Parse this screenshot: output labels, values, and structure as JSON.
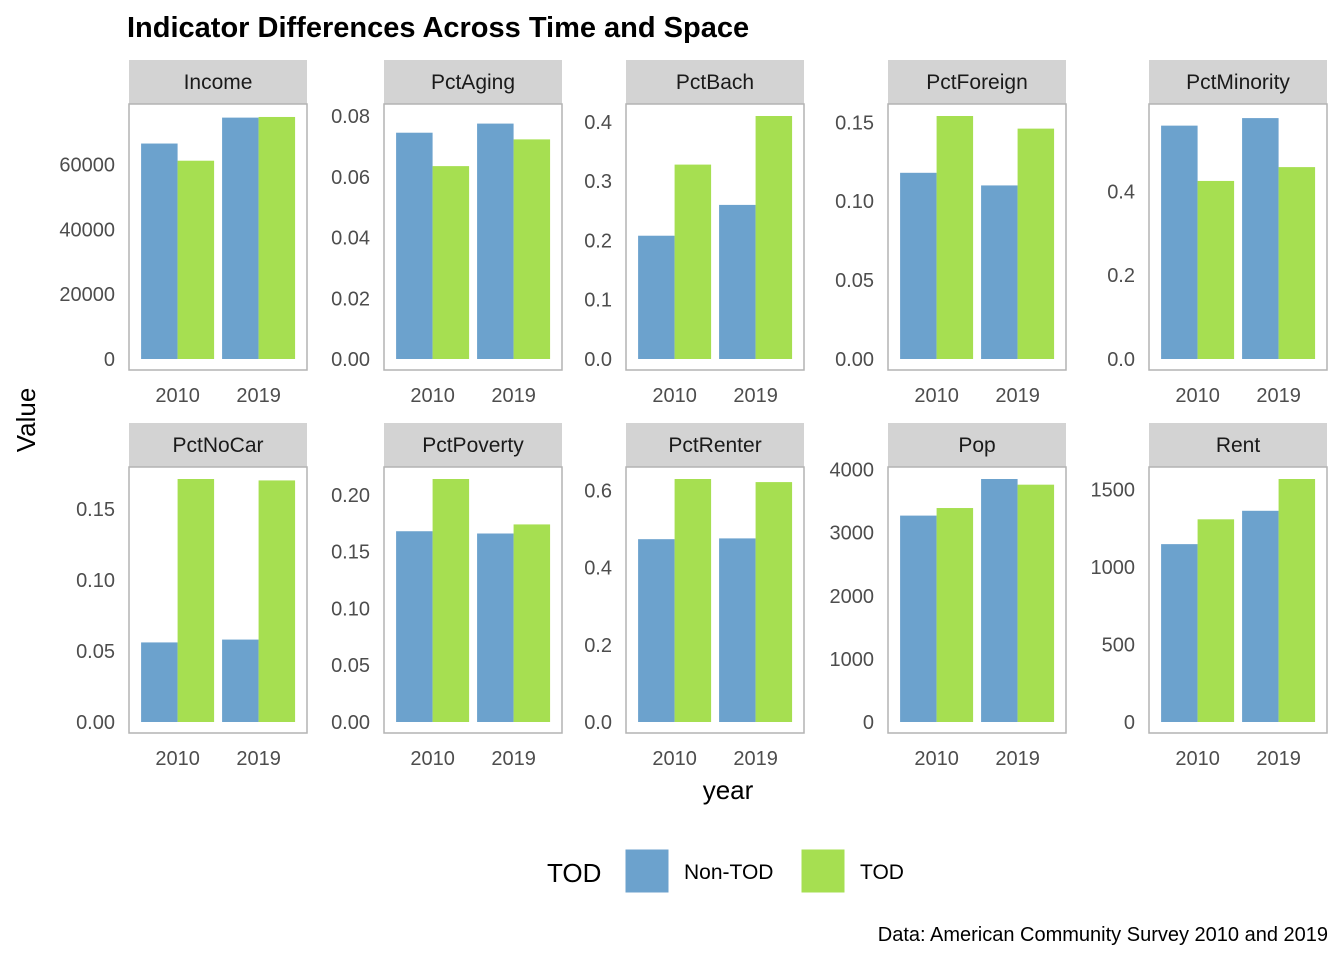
{
  "chart_data": {
    "type": "bar",
    "title": "Indicator Differences Across Time and Space",
    "xlabel": "year",
    "ylabel": "Value",
    "caption": "Data: American Community Survey 2010 and 2019",
    "legend": {
      "title": "TOD",
      "position": "bottom",
      "items": [
        {
          "name": "Non-TOD",
          "color": "#6ca2cd"
        },
        {
          "name": "TOD",
          "color": "#a6df51"
        }
      ]
    },
    "categories": [
      "2010",
      "2019"
    ],
    "grid": false,
    "facets": [
      {
        "name": "Income",
        "ylim": [
          0,
          75000
        ],
        "ticks": [
          0,
          20000,
          40000,
          60000
        ],
        "tick_labels": [
          "0",
          "20000",
          "40000",
          "60000"
        ],
        "series": [
          {
            "name": "Non-TOD",
            "values": [
              66500,
              74500
            ]
          },
          {
            "name": "TOD",
            "values": [
              61200,
              74700
            ]
          }
        ]
      },
      {
        "name": "PctAging",
        "ylim": [
          0,
          0.08
        ],
        "ticks": [
          0,
          0.02,
          0.04,
          0.06,
          0.08
        ],
        "tick_labels": [
          "0.00",
          "0.02",
          "0.04",
          "0.06",
          "0.08"
        ],
        "series": [
          {
            "name": "Non-TOD",
            "values": [
              0.0745,
              0.0775
            ]
          },
          {
            "name": "TOD",
            "values": [
              0.0635,
              0.0723
            ]
          }
        ]
      },
      {
        "name": "PctBach",
        "ylim": [
          0,
          0.41
        ],
        "ticks": [
          0,
          0.1,
          0.2,
          0.3,
          0.4
        ],
        "tick_labels": [
          "0.0",
          "0.1",
          "0.2",
          "0.3",
          "0.4"
        ],
        "series": [
          {
            "name": "Non-TOD",
            "values": [
              0.208,
              0.26
            ]
          },
          {
            "name": "TOD",
            "values": [
              0.328,
              0.41
            ]
          }
        ]
      },
      {
        "name": "PctForeign",
        "ylim": [
          0,
          0.154
        ],
        "ticks": [
          0,
          0.05,
          0.1,
          0.15
        ],
        "tick_labels": [
          "0.00",
          "0.05",
          "0.10",
          "0.15"
        ],
        "series": [
          {
            "name": "Non-TOD",
            "values": [
              0.118,
              0.11
            ]
          },
          {
            "name": "TOD",
            "values": [
              0.154,
              0.146
            ]
          }
        ]
      },
      {
        "name": "PctMinority",
        "ylim": [
          0,
          0.58
        ],
        "ticks": [
          0,
          0.2,
          0.4
        ],
        "tick_labels": [
          "0.0",
          "0.2",
          "0.4"
        ],
        "series": [
          {
            "name": "Non-TOD",
            "values": [
              0.557,
              0.575
            ]
          },
          {
            "name": "TOD",
            "values": [
              0.425,
              0.458
            ]
          }
        ]
      },
      {
        "name": "PctNoCar",
        "ylim": [
          0,
          0.171
        ],
        "ticks": [
          0,
          0.05,
          0.1,
          0.15
        ],
        "tick_labels": [
          "0.00",
          "0.05",
          "0.10",
          "0.15"
        ],
        "series": [
          {
            "name": "Non-TOD",
            "values": [
              0.056,
              0.058
            ]
          },
          {
            "name": "TOD",
            "values": [
              0.171,
              0.17
            ]
          }
        ]
      },
      {
        "name": "PctPoverty",
        "ylim": [
          0,
          0.214
        ],
        "ticks": [
          0,
          0.05,
          0.1,
          0.15,
          0.2
        ],
        "tick_labels": [
          "0.00",
          "0.05",
          "0.10",
          "0.15",
          "0.20"
        ],
        "series": [
          {
            "name": "Non-TOD",
            "values": [
              0.168,
              0.166
            ]
          },
          {
            "name": "TOD",
            "values": [
              0.214,
              0.174
            ]
          }
        ]
      },
      {
        "name": "PctRenter",
        "ylim": [
          0,
          0.63
        ],
        "ticks": [
          0,
          0.2,
          0.4,
          0.6
        ],
        "tick_labels": [
          "0.0",
          "0.2",
          "0.4",
          "0.6"
        ],
        "series": [
          {
            "name": "Non-TOD",
            "values": [
              0.474,
              0.476
            ]
          },
          {
            "name": "TOD",
            "values": [
              0.63,
              0.622
            ]
          }
        ]
      },
      {
        "name": "Pop",
        "ylim": [
          0,
          3850
        ],
        "ticks": [
          0,
          1000,
          2000,
          3000,
          4000
        ],
        "tick_labels": [
          "0",
          "1000",
          "2000",
          "3000",
          "4000"
        ],
        "series": [
          {
            "name": "Non-TOD",
            "values": [
              3270,
              3850
            ]
          },
          {
            "name": "TOD",
            "values": [
              3390,
              3760
            ]
          }
        ]
      },
      {
        "name": "Rent",
        "ylim": [
          0,
          1567
        ],
        "ticks": [
          0,
          500,
          1000,
          1500
        ],
        "tick_labels": [
          "0",
          "500",
          "1000",
          "1500"
        ],
        "series": [
          {
            "name": "Non-TOD",
            "values": [
              1147,
              1362
            ]
          },
          {
            "name": "TOD",
            "values": [
              1307,
              1567
            ]
          }
        ]
      }
    ]
  }
}
